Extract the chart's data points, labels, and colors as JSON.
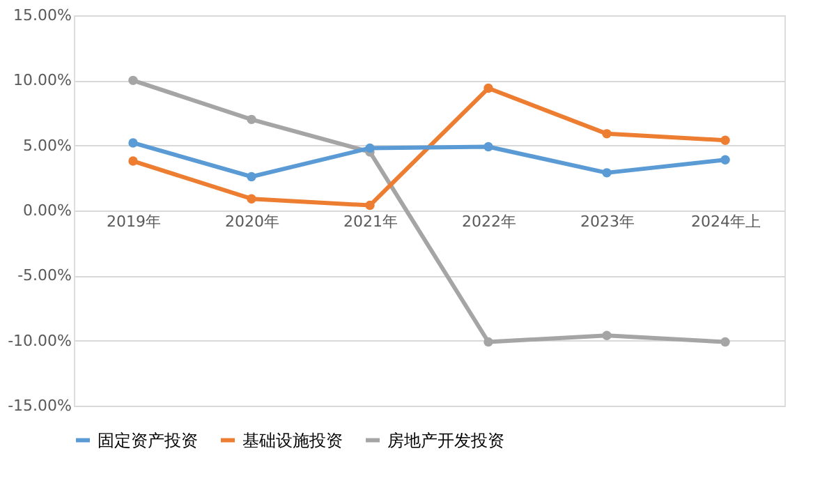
{
  "chart_data": {
    "type": "line",
    "categories": [
      "2019年",
      "2020年",
      "2021年",
      "2022年",
      "2023年",
      "2024年上"
    ],
    "series": [
      {
        "name": "固定资产投资",
        "color": "#5b9bd5",
        "values": [
          5.2,
          2.6,
          4.8,
          4.9,
          2.9,
          3.9
        ]
      },
      {
        "name": "基础设施投资",
        "color": "#ed7d31",
        "values": [
          3.8,
          0.9,
          0.4,
          9.4,
          5.9,
          5.4
        ]
      },
      {
        "name": "房地产开发投资",
        "color": "#a5a5a5",
        "values": [
          10.0,
          7.0,
          4.5,
          -10.1,
          -9.6,
          -10.1
        ]
      }
    ],
    "ylim": [
      -15,
      15
    ],
    "yticks": [
      {
        "value": -15,
        "label": "-15.00%"
      },
      {
        "value": -10,
        "label": "-10.00%"
      },
      {
        "value": -5,
        "label": "-5.00%"
      },
      {
        "value": 0,
        "label": "0.00%"
      },
      {
        "value": 5,
        "label": "5.00%"
      },
      {
        "value": 10,
        "label": "10.00%"
      },
      {
        "value": 15,
        "label": "15.00%"
      }
    ],
    "grid": "y",
    "legend": "bottom",
    "marker": "circle",
    "line_style": "solid"
  }
}
